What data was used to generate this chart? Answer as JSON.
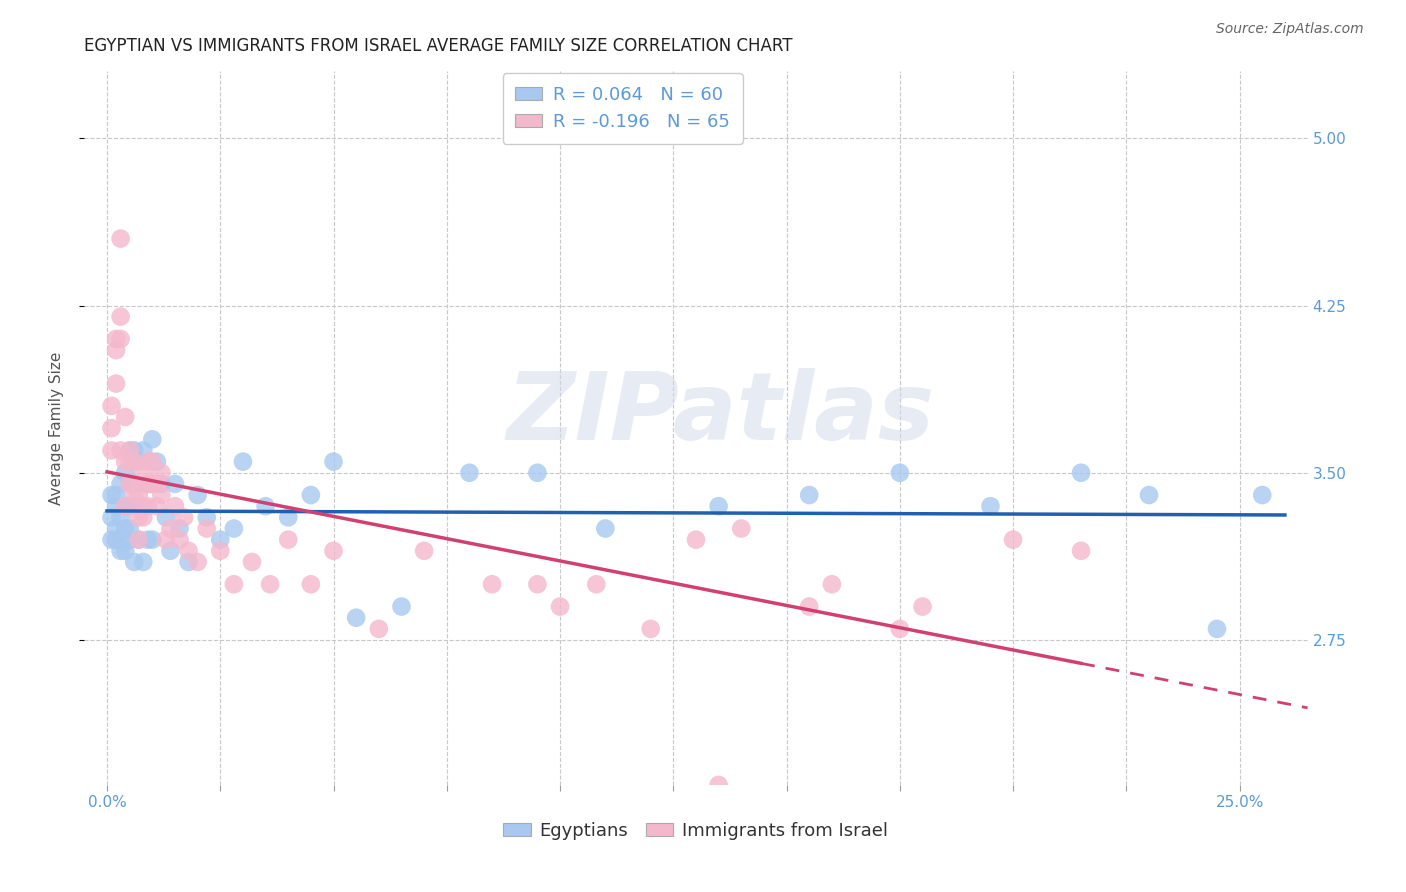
{
  "title": "EGYPTIAN VS IMMIGRANTS FROM ISRAEL AVERAGE FAMILY SIZE CORRELATION CHART",
  "source": "Source: ZipAtlas.com",
  "ylabel": "Average Family Size",
  "xlabel_ticks_labels": [
    "0.0%",
    "",
    "",
    "",
    "",
    "",
    "",
    "",
    "",
    "",
    "25.0%"
  ],
  "xlabel_vals": [
    0.0,
    0.025,
    0.05,
    0.075,
    0.1,
    0.125,
    0.15,
    0.175,
    0.2,
    0.225,
    0.25
  ],
  "ylim": [
    2.1,
    5.3
  ],
  "xlim": [
    -0.005,
    0.265
  ],
  "yticks": [
    2.75,
    3.5,
    4.25,
    5.0
  ],
  "legend_color_1": "#a8c8f0",
  "legend_color_2": "#f4b8cc",
  "scatter_color_1": "#a8c8f0",
  "scatter_color_2": "#f4b8cc",
  "trend_color_1": "#2060b0",
  "trend_color_2": "#d04070",
  "watermark": "ZIPatlas",
  "title_color": "#222222",
  "axis_color": "#5b9bd5",
  "background_color": "#ffffff",
  "grid_color": "#c8c8c8",
  "title_fontsize": 12,
  "source_fontsize": 10,
  "label_fontsize": 11,
  "tick_fontsize": 11,
  "legend_fontsize": 13,
  "egyptians_x": [
    0.001,
    0.001,
    0.001,
    0.002,
    0.002,
    0.002,
    0.002,
    0.003,
    0.003,
    0.003,
    0.003,
    0.004,
    0.004,
    0.004,
    0.004,
    0.005,
    0.005,
    0.005,
    0.005,
    0.006,
    0.006,
    0.006,
    0.007,
    0.007,
    0.007,
    0.008,
    0.008,
    0.009,
    0.009,
    0.01,
    0.01,
    0.011,
    0.012,
    0.013,
    0.014,
    0.015,
    0.016,
    0.018,
    0.02,
    0.022,
    0.025,
    0.028,
    0.03,
    0.035,
    0.04,
    0.045,
    0.05,
    0.055,
    0.065,
    0.08,
    0.095,
    0.11,
    0.135,
    0.155,
    0.175,
    0.195,
    0.215,
    0.23,
    0.245,
    0.255
  ],
  "egyptians_y": [
    3.3,
    3.2,
    3.4,
    3.25,
    3.35,
    3.2,
    3.4,
    3.15,
    3.3,
    3.45,
    3.2,
    3.35,
    3.5,
    3.25,
    3.15,
    3.6,
    3.2,
    3.35,
    3.25,
    3.6,
    3.1,
    3.45,
    3.55,
    3.2,
    3.35,
    3.6,
    3.1,
    3.45,
    3.2,
    3.65,
    3.2,
    3.55,
    3.45,
    3.3,
    3.15,
    3.45,
    3.25,
    3.1,
    3.4,
    3.3,
    3.2,
    3.25,
    3.55,
    3.35,
    3.3,
    3.4,
    3.55,
    2.85,
    2.9,
    3.5,
    3.5,
    3.25,
    3.35,
    3.4,
    3.5,
    3.35,
    3.5,
    3.4,
    2.8,
    3.4
  ],
  "israel_x": [
    0.001,
    0.001,
    0.001,
    0.002,
    0.002,
    0.002,
    0.003,
    0.003,
    0.003,
    0.003,
    0.004,
    0.004,
    0.004,
    0.005,
    0.005,
    0.005,
    0.006,
    0.006,
    0.006,
    0.007,
    0.007,
    0.007,
    0.008,
    0.008,
    0.008,
    0.009,
    0.009,
    0.009,
    0.01,
    0.01,
    0.01,
    0.011,
    0.011,
    0.012,
    0.012,
    0.013,
    0.014,
    0.015,
    0.016,
    0.017,
    0.018,
    0.02,
    0.022,
    0.025,
    0.028,
    0.032,
    0.036,
    0.04,
    0.045,
    0.05,
    0.06,
    0.07,
    0.085,
    0.1,
    0.12,
    0.14,
    0.16,
    0.18,
    0.2,
    0.215,
    0.13,
    0.095,
    0.108,
    0.155,
    0.175
  ],
  "israel_y": [
    3.8,
    3.7,
    3.6,
    4.1,
    4.05,
    3.9,
    4.55,
    4.2,
    4.1,
    3.6,
    3.75,
    3.55,
    3.35,
    3.6,
    3.55,
    3.45,
    3.4,
    3.55,
    3.45,
    3.3,
    3.2,
    3.4,
    3.3,
    3.5,
    3.35,
    3.45,
    3.55,
    3.35,
    3.45,
    3.55,
    3.45,
    3.35,
    3.45,
    3.5,
    3.4,
    3.2,
    3.25,
    3.35,
    3.2,
    3.3,
    3.15,
    3.1,
    3.25,
    3.15,
    3.0,
    3.1,
    3.0,
    3.2,
    3.0,
    3.15,
    2.8,
    3.15,
    3.0,
    2.9,
    2.8,
    3.25,
    3.0,
    2.9,
    3.2,
    3.15,
    3.2,
    3.0,
    3.0,
    2.9,
    2.8
  ],
  "israel_outlier_x": [
    0.135
  ],
  "israel_outlier_y": [
    2.1
  ]
}
